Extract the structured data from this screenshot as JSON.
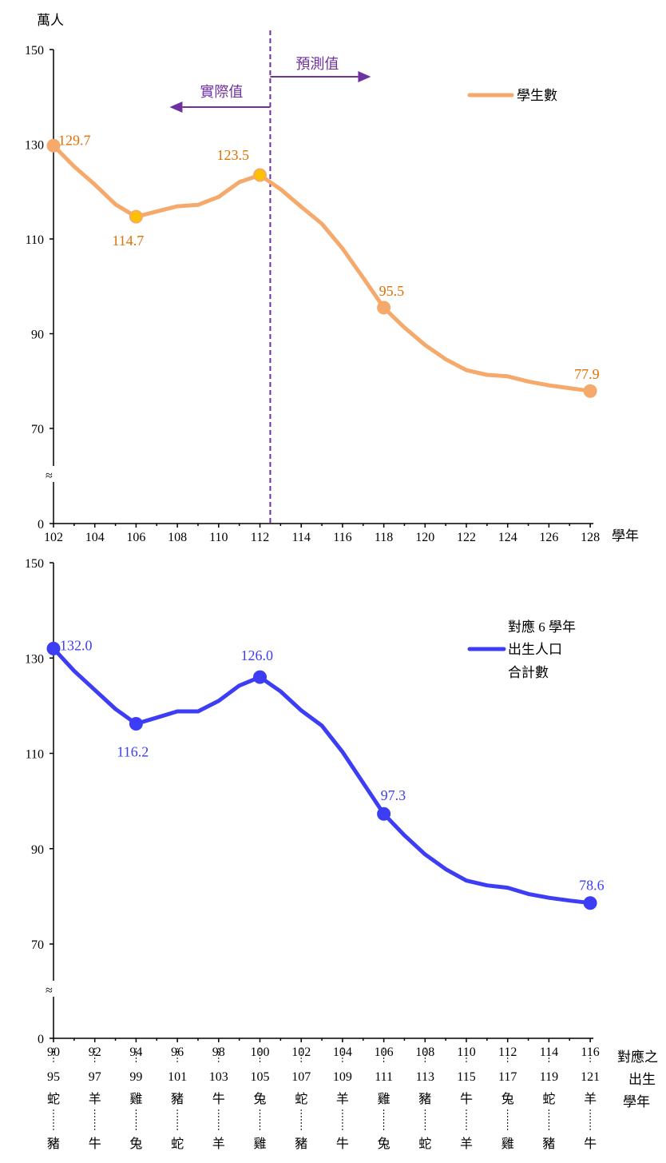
{
  "colors": {
    "students": "#f5a96b",
    "students_labels": "#e07000",
    "highlight_dot": "#ffc000",
    "births": "#3d3df5",
    "births_labels": "#3d3df5",
    "divider": "#7030a0"
  },
  "chart_data": [
    {
      "type": "line",
      "ylabel": "萬人",
      "xlabel": "學年",
      "ylim": [
        0,
        150
      ],
      "y_ticks": [
        "150",
        "130",
        "110",
        "90",
        "70",
        "0"
      ],
      "axis_break_symbol": "≈",
      "x": [
        102,
        103,
        104,
        105,
        106,
        107,
        108,
        109,
        110,
        111,
        112,
        113,
        114,
        115,
        116,
        117,
        118,
        119,
        120,
        121,
        122,
        123,
        124,
        125,
        126,
        127,
        128
      ],
      "x_tick_labels": [
        "102",
        "104",
        "106",
        "108",
        "110",
        "112",
        "114",
        "116",
        "118",
        "120",
        "122",
        "124",
        "126",
        "128"
      ],
      "series": [
        {
          "name": "學生數",
          "values": [
            129.7,
            125.3,
            121.5,
            117.3,
            114.7,
            115.8,
            116.9,
            117.2,
            118.9,
            122.0,
            123.5,
            120.5,
            116.8,
            113.2,
            108.0,
            101.8,
            95.5,
            91.3,
            87.6,
            84.6,
            82.3,
            81.3,
            81.0,
            79.9,
            79.1,
            78.5,
            77.9
          ]
        }
      ],
      "annotations": [
        {
          "x": 102,
          "value": 129.7,
          "label": "129.7"
        },
        {
          "x": 106,
          "value": 114.7,
          "label": "114.7"
        },
        {
          "x": 112,
          "value": 123.5,
          "label": "123.5"
        },
        {
          "x": 118,
          "value": 95.5,
          "label": "95.5"
        },
        {
          "x": 128,
          "value": 77.9,
          "label": "77.9"
        }
      ],
      "divider_x": 112.5,
      "divider_labels": {
        "actual": "實際值",
        "projected": "預測值"
      }
    },
    {
      "type": "line",
      "ylim": [
        0,
        150
      ],
      "y_ticks": [
        "150",
        "130",
        "110",
        "90",
        "70",
        "0"
      ],
      "axis_break_symbol": "≈",
      "x": [
        90,
        91,
        92,
        93,
        94,
        95,
        96,
        97,
        98,
        99,
        100,
        101,
        102,
        103,
        104,
        105,
        106,
        107,
        108,
        109,
        110,
        111,
        112,
        113,
        114,
        115,
        116
      ],
      "x_tick_labels": [
        "90",
        "92",
        "94",
        "96",
        "98",
        "100",
        "102",
        "104",
        "106",
        "108",
        "110",
        "112",
        "114",
        "116"
      ],
      "series": [
        {
          "name": "對應 6 學年出生人口合計數",
          "legend_lines": [
            "對應 6 學年",
            "出生人口",
            "合計數"
          ],
          "values": [
            132.0,
            127.3,
            123.3,
            119.3,
            116.2,
            117.5,
            118.8,
            118.8,
            121.0,
            124.2,
            126.0,
            123.0,
            119.0,
            115.8,
            110.3,
            103.8,
            97.3,
            92.8,
            88.8,
            85.7,
            83.3,
            82.3,
            81.8,
            80.5,
            79.7,
            79.1,
            78.6
          ]
        }
      ],
      "annotations": [
        {
          "x": 90,
          "value": 132.0,
          "label": "132.0"
        },
        {
          "x": 94,
          "value": 116.2,
          "label": "116.2"
        },
        {
          "x": 100,
          "value": 126.0,
          "label": "126.0"
        },
        {
          "x": 106,
          "value": 97.3,
          "label": "97.3"
        },
        {
          "x": 116,
          "value": 78.6,
          "label": "78.6"
        }
      ],
      "birth_year_ranges": [
        {
          "start": "95",
          "start_zodiac": "蛇",
          "end_zodiac": "豬"
        },
        {
          "start": "97",
          "start_zodiac": "羊",
          "end_zodiac": "牛"
        },
        {
          "start": "99",
          "start_zodiac": "雞",
          "end_zodiac": "兔"
        },
        {
          "start": "101",
          "start_zodiac": "豬",
          "end_zodiac": "蛇"
        },
        {
          "start": "103",
          "start_zodiac": "牛",
          "end_zodiac": "羊"
        },
        {
          "start": "105",
          "start_zodiac": "兔",
          "end_zodiac": "雞"
        },
        {
          "start": "107",
          "start_zodiac": "蛇",
          "end_zodiac": "豬"
        },
        {
          "start": "109",
          "start_zodiac": "羊",
          "end_zodiac": "牛"
        },
        {
          "start": "111",
          "start_zodiac": "雞",
          "end_zodiac": "兔"
        },
        {
          "start": "113",
          "start_zodiac": "豬",
          "end_zodiac": "蛇"
        },
        {
          "start": "115",
          "start_zodiac": "牛",
          "end_zodiac": "羊"
        },
        {
          "start": "117",
          "start_zodiac": "兔",
          "end_zodiac": "雞"
        },
        {
          "start": "119",
          "start_zodiac": "蛇",
          "end_zodiac": "豬"
        },
        {
          "start": "121",
          "start_zodiac": "羊",
          "end_zodiac": "牛"
        }
      ],
      "xlabel_lines": [
        "對應之",
        "出生",
        "學年"
      ]
    }
  ]
}
